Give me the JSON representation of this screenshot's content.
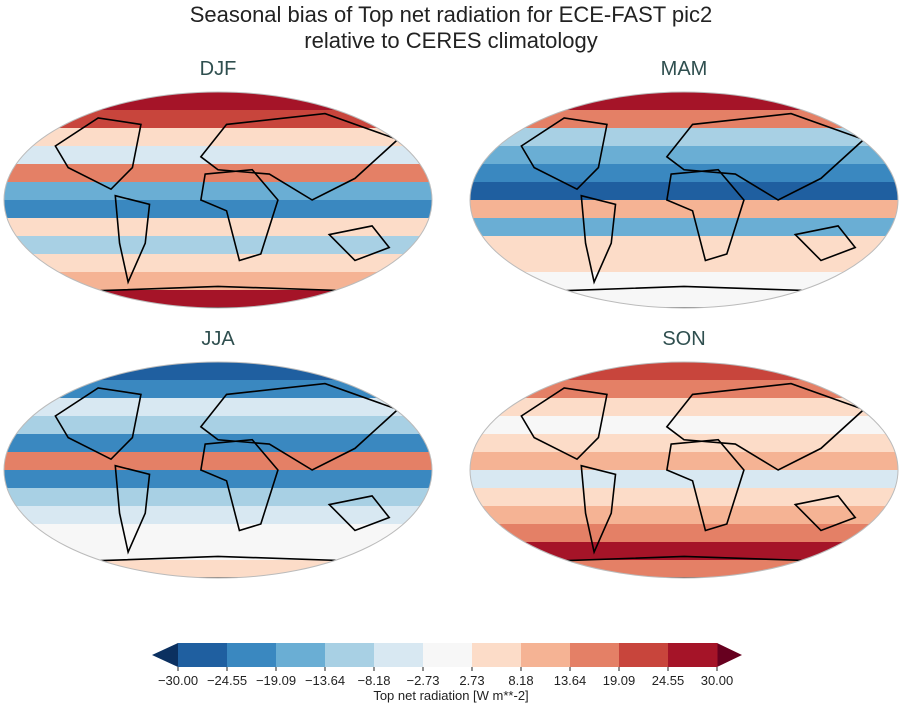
{
  "chart_data": {
    "type": "heatmap",
    "title": "Seasonal bias of Top net radiation for ECE-FAST pic2",
    "subtitle": "relative to CERES climatology",
    "panels": [
      {
        "label": "DJF",
        "bands": [
          28,
          22,
          4,
          -8,
          16,
          -18,
          -22,
          4,
          -10,
          8,
          12,
          30
        ]
      },
      {
        "label": "MAM",
        "bands": [
          26,
          14,
          -10,
          -18,
          -22,
          -26,
          12,
          -14,
          4,
          6,
          2,
          2
        ]
      },
      {
        "label": "JJA",
        "bands": [
          -30,
          -20,
          -4,
          -12,
          -22,
          18,
          -20,
          -12,
          -6,
          2,
          0,
          4
        ]
      },
      {
        "label": "SON",
        "bands": [
          22,
          14,
          6,
          -2,
          4,
          12,
          -6,
          8,
          12,
          16,
          26,
          14
        ]
      }
    ],
    "colorbar": {
      "label": "Top net radiation [W m**-2]",
      "ticks": [
        "−30.00",
        "−24.55",
        "−19.09",
        "−13.64",
        "−8.18",
        "−2.73",
        "2.73",
        "8.18",
        "13.64",
        "19.09",
        "24.55",
        "30.00"
      ],
      "range": [
        -30,
        30
      ],
      "extend": "both",
      "colors": [
        "#0b3060",
        "#1f5fa0",
        "#3a88c0",
        "#6aaed4",
        "#a8d0e4",
        "#d8e8f2",
        "#f7f7f7",
        "#fcdcc8",
        "#f5b394",
        "#e48066",
        "#c8453c",
        "#a51428",
        "#67001f"
      ]
    }
  }
}
